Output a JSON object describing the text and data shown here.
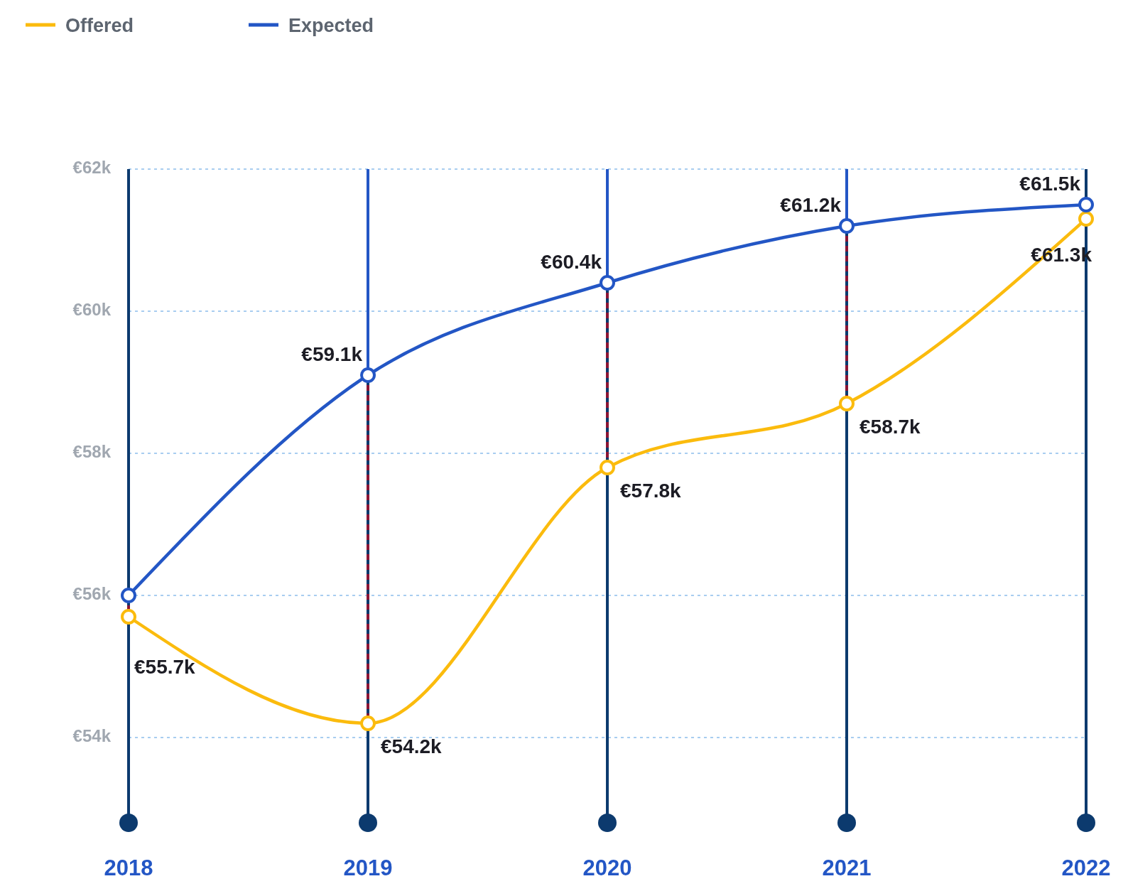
{
  "chart_data": {
    "type": "line",
    "categories": [
      "2018",
      "2019",
      "2020",
      "2021",
      "2022"
    ],
    "series": [
      {
        "name": "Offered",
        "color": "#fbbb0d",
        "values": [
          55.7,
          54.2,
          57.8,
          58.7,
          61.3
        ]
      },
      {
        "name": "Expected",
        "color": "#2356c5",
        "values": [
          56,
          59.1,
          60.4,
          61.2,
          61.5
        ]
      }
    ],
    "value_labels": [
      [
        "€55.7k",
        "€54.2k",
        "€57.8k",
        "€58.7k",
        "€61.3k"
      ],
      [
        null,
        "€59.1k",
        "€60.4k",
        "€61.2k",
        "€61.5k"
      ]
    ],
    "ylim": [
      52.8,
      62
    ],
    "yticks": [
      {
        "value": 54,
        "label": "€54k"
      },
      {
        "value": 56,
        "label": "€56k"
      },
      {
        "value": 58,
        "label": "€58k"
      },
      {
        "value": 60,
        "label": "€60k"
      },
      {
        "value": 62,
        "label": "€62k"
      }
    ],
    "grid": true,
    "legend": "top left",
    "marker": "circle",
    "line_style": "solid"
  }
}
